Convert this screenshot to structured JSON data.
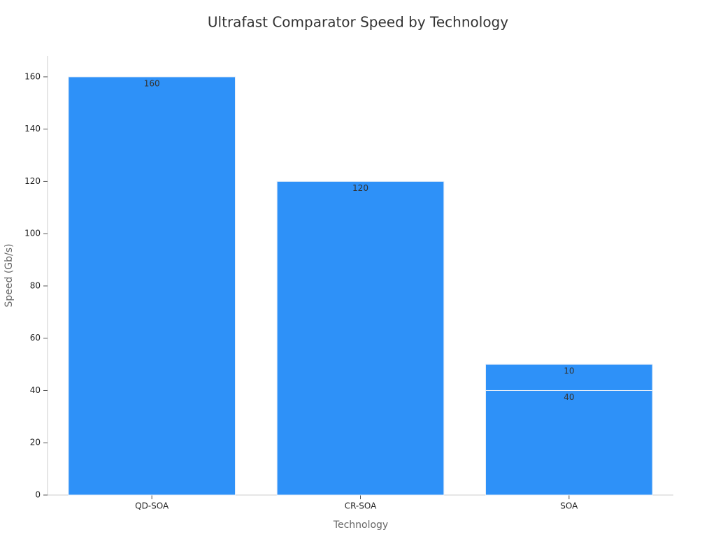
{
  "chart_data": {
    "type": "stacked-bar",
    "title": "Ultrafast Comparator Speed by Technology",
    "x_label": "Technology",
    "y_label": "Speed (Gb/s)",
    "categories": [
      "QD-SOA",
      "CR-SOA",
      "SOA"
    ],
    "series": [
      {
        "color": "#2e91f8",
        "values": [
          160,
          120,
          40
        ]
      },
      {
        "color": "#2e91f8",
        "values": [
          null,
          null,
          10
        ]
      }
    ],
    "ylim": [
      0,
      168
    ],
    "yticks": [
      0,
      20,
      40,
      60,
      80,
      100,
      120,
      140,
      160
    ]
  }
}
